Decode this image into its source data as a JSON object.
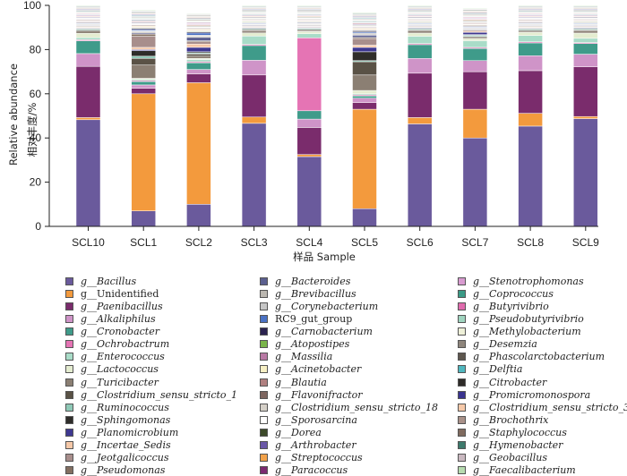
{
  "chart_data": {
    "type": "stacked-bar",
    "ylabel_cn": "相对丰度/%",
    "ylabel_en": "Relative abundance",
    "xlabel": "样品 Sample",
    "ylim": [
      0,
      100
    ],
    "yticks": [
      0,
      20,
      40,
      60,
      80,
      100
    ],
    "categories": [
      "SCL10",
      "SCL1",
      "SCL2",
      "SCL3",
      "SCL4",
      "SCL5",
      "SCL6",
      "SCL7",
      "SCL8",
      "SCL9"
    ],
    "series": [
      {
        "name": "g__Bacillus",
        "italic": true,
        "color": "#6a5a9c",
        "values": [
          50.0,
          7.0,
          10.0,
          49.0,
          33.5,
          8.0,
          48.5,
          40.0,
          47.0,
          51.0
        ]
      },
      {
        "name": "g__Unidentified",
        "italic": false,
        "color": "#f39a3d",
        "values": [
          1.0,
          53.0,
          55.0,
          3.0,
          1.0,
          45.0,
          3.0,
          13.0,
          6.0,
          1.0
        ]
      },
      {
        "name": "g__Paenibacillus",
        "italic": true,
        "color": "#7a2c6c",
        "values": [
          24.0,
          2.5,
          4.0,
          20.0,
          13.0,
          3.0,
          21.0,
          17.0,
          20.0,
          23.5
        ]
      },
      {
        "name": "g__Alkaliphilus",
        "italic": true,
        "color": "#cf94c8",
        "values": [
          6.0,
          1.5,
          2.0,
          7.0,
          4.0,
          2.0,
          7.0,
          5.0,
          7.0,
          6.0
        ]
      },
      {
        "name": "g__Cronobacter",
        "italic": true,
        "color": "#3f9b8a",
        "values": [
          6.0,
          1.5,
          3.0,
          7.0,
          4.0,
          1.0,
          6.5,
          5.5,
          6.0,
          5.0
        ]
      },
      {
        "name": "g__Ochrobactrum",
        "italic": true,
        "color": "#e574b4",
        "values": [
          0.5,
          0.5,
          0.5,
          0.5,
          35.0,
          0.5,
          0.5,
          0.5,
          0.5,
          0.5
        ]
      },
      {
        "name": "g__Enterococcus",
        "italic": true,
        "color": "#a9dcc8",
        "values": [
          1.0,
          0.5,
          1.0,
          4.0,
          2.0,
          0.5,
          3.5,
          3.0,
          3.0,
          2.0
        ]
      },
      {
        "name": "g__Lactococcus",
        "italic": true,
        "color": "#e4ecd0",
        "values": [
          2.0,
          0.5,
          0.5,
          1.5,
          1.0,
          1.5,
          1.5,
          1.0,
          1.5,
          2.5
        ]
      },
      {
        "name": "g__Turicibacter",
        "italic": true,
        "color": "#8b7f73",
        "values": [
          1.0,
          6.0,
          1.0,
          1.0,
          0.5,
          7.0,
          1.0,
          0.5,
          0.5,
          1.0
        ]
      },
      {
        "name": "g__Clostridium_sensu_stricto_1",
        "italic": true,
        "color": "#5a5246",
        "values": [
          0.5,
          3.0,
          1.0,
          0.5,
          0.5,
          6.0,
          0.5,
          0.5,
          0.5,
          0.5
        ]
      },
      {
        "name": "g__Ruminococcus",
        "italic": true,
        "color": "#8fc9b7",
        "values": [
          0.5,
          1.0,
          0.5,
          0.5,
          0.5,
          0.5,
          0.5,
          0.5,
          0.5,
          0.5
        ]
      },
      {
        "name": "g__Sphingomonas",
        "italic": true,
        "color": "#2f2d2a",
        "values": [
          0.3,
          2.5,
          0.5,
          0.3,
          0.3,
          4.0,
          0.3,
          0.3,
          0.3,
          0.3
        ]
      },
      {
        "name": "g__Planomicrobium",
        "italic": true,
        "color": "#3e3891",
        "values": [
          0.3,
          0.5,
          2.0,
          0.3,
          0.3,
          2.0,
          0.3,
          1.0,
          0.3,
          0.3
        ]
      },
      {
        "name": "g__Incertae_Sedis",
        "italic": true,
        "color": "#f5c8a8",
        "values": [
          0.3,
          1.0,
          1.5,
          0.3,
          0.3,
          1.0,
          0.3,
          0.5,
          0.3,
          0.3
        ]
      },
      {
        "name": "g__Jeotgalicoccus",
        "italic": true,
        "color": "#a88e8c",
        "values": [
          0.3,
          5.0,
          1.0,
          0.3,
          0.3,
          3.0,
          0.3,
          0.5,
          0.3,
          0.3
        ]
      },
      {
        "name": "g__Pseudomonas",
        "italic": true,
        "color": "#836f61",
        "values": [
          0.3,
          1.0,
          0.5,
          0.3,
          0.3,
          0.5,
          0.3,
          0.3,
          0.3,
          0.3
        ]
      },
      {
        "name": "g__Bacteroides",
        "italic": true,
        "color": "#5b5f8f",
        "values": [
          0.3,
          0.5,
          1.5,
          0.3,
          0.3,
          1.0,
          0.3,
          0.3,
          0.3,
          0.3
        ]
      },
      {
        "name": "g__Brevibacillus",
        "italic": true,
        "color": "#bcb8b1",
        "values": [
          0.3,
          0.5,
          0.5,
          0.3,
          0.3,
          0.5,
          0.3,
          0.3,
          0.3,
          0.3
        ]
      },
      {
        "name": "g__Corynebacterium",
        "italic": true,
        "color": "#c6c6c6",
        "values": [
          0.3,
          0.5,
          0.5,
          0.3,
          0.3,
          0.5,
          0.3,
          0.3,
          0.3,
          0.3
        ]
      },
      {
        "name": "RC9_gut_group",
        "italic": false,
        "color": "#4a72c4",
        "values": [
          0.3,
          0.5,
          1.0,
          0.3,
          0.3,
          0.5,
          0.3,
          0.3,
          0.3,
          0.3
        ]
      },
      {
        "name": "g__Carnobacterium",
        "italic": true,
        "color": "#2b2250",
        "values": [
          0.3,
          0.5,
          0.5,
          0.3,
          0.3,
          0.5,
          0.3,
          0.3,
          0.3,
          0.3
        ]
      },
      {
        "name": "g__Atopostipes",
        "italic": true,
        "color": "#7ab54a",
        "values": [
          0.3,
          0.3,
          0.3,
          0.3,
          0.3,
          0.3,
          0.3,
          0.3,
          0.3,
          0.3
        ]
      },
      {
        "name": "g__Massilia",
        "italic": true,
        "color": "#b97aa5",
        "values": [
          0.3,
          0.3,
          0.3,
          0.3,
          0.3,
          0.3,
          0.3,
          0.3,
          0.3,
          0.3
        ]
      },
      {
        "name": "g__Acinetobacter",
        "italic": true,
        "color": "#f7f0c4",
        "values": [
          0.3,
          0.5,
          0.5,
          0.3,
          0.3,
          0.5,
          0.3,
          0.3,
          0.3,
          0.3
        ]
      },
      {
        "name": "g__Blautia",
        "italic": true,
        "color": "#b08080",
        "values": [
          0.3,
          0.3,
          0.3,
          0.3,
          0.3,
          0.3,
          0.3,
          0.3,
          0.3,
          0.3
        ]
      },
      {
        "name": "g__Flavonifractor",
        "italic": true,
        "color": "#7e6660",
        "values": [
          0.3,
          0.3,
          0.3,
          0.3,
          0.3,
          0.3,
          0.3,
          0.3,
          0.3,
          0.3
        ]
      },
      {
        "name": "g__Clostridium_sensu_stricto_18",
        "italic": true,
        "color": "#d5d0c8",
        "values": [
          0.3,
          0.3,
          0.3,
          0.3,
          0.3,
          0.3,
          0.3,
          0.3,
          0.3,
          0.3
        ]
      },
      {
        "name": "g__Sporosarcina",
        "italic": true,
        "color": "#ffffff",
        "values": [
          0.3,
          0.3,
          0.3,
          0.3,
          0.3,
          0.3,
          0.3,
          0.3,
          0.3,
          0.3
        ]
      },
      {
        "name": "g__Dorea",
        "italic": true,
        "color": "#3d4a2a",
        "values": [
          0.3,
          0.3,
          0.3,
          0.3,
          0.3,
          0.3,
          0.3,
          0.3,
          0.3,
          0.3
        ]
      },
      {
        "name": "g__Arthrobacter",
        "italic": true,
        "color": "#6b58a8",
        "values": [
          0.3,
          0.3,
          0.3,
          0.3,
          0.3,
          0.3,
          0.3,
          0.3,
          0.3,
          0.3
        ]
      },
      {
        "name": "g__Streptococcus",
        "italic": true,
        "color": "#f2a24b",
        "values": [
          0.3,
          0.3,
          0.3,
          0.3,
          0.3,
          0.3,
          0.3,
          0.3,
          0.3,
          0.3
        ]
      },
      {
        "name": "g__Paracoccus",
        "italic": true,
        "color": "#7b2a70",
        "values": [
          0.3,
          0.3,
          0.3,
          0.3,
          0.3,
          0.3,
          0.3,
          0.3,
          0.3,
          0.3
        ]
      },
      {
        "name": "g__Stenotrophomonas",
        "italic": true,
        "color": "#d89bd0",
        "values": [
          0.3,
          0.3,
          0.3,
          0.3,
          0.3,
          0.3,
          0.3,
          0.3,
          0.3,
          0.3
        ]
      },
      {
        "name": "g__Coprococcus",
        "italic": true,
        "color": "#3a9a86",
        "values": [
          0.3,
          0.3,
          0.3,
          0.3,
          0.3,
          0.3,
          0.3,
          0.3,
          0.3,
          0.3
        ]
      },
      {
        "name": "g__Butyrivibrio",
        "italic": true,
        "color": "#e06cae",
        "values": [
          0.3,
          0.3,
          0.3,
          0.3,
          0.3,
          0.3,
          0.3,
          0.3,
          0.3,
          0.3
        ]
      },
      {
        "name": "g__Pseudobutyrivibrio",
        "italic": true,
        "color": "#9fd4bf",
        "values": [
          0.3,
          0.3,
          0.3,
          0.3,
          0.3,
          0.3,
          0.3,
          0.3,
          0.3,
          0.3
        ]
      },
      {
        "name": "g__Methylobacterium",
        "italic": true,
        "color": "#eef0d8",
        "values": [
          0.3,
          0.3,
          0.3,
          0.3,
          0.3,
          0.3,
          0.3,
          0.3,
          0.3,
          0.3
        ]
      },
      {
        "name": "g__Desemzia",
        "italic": true,
        "color": "#8e857c",
        "values": [
          0.3,
          0.3,
          0.3,
          0.3,
          0.3,
          0.3,
          0.3,
          0.3,
          0.3,
          0.3
        ]
      },
      {
        "name": "g__Phascolarctobacterium",
        "italic": true,
        "color": "#5e574e",
        "values": [
          0.3,
          0.3,
          0.3,
          0.3,
          0.3,
          0.3,
          0.3,
          0.3,
          0.3,
          0.3
        ]
      },
      {
        "name": "g__Delftia",
        "italic": true,
        "color": "#4fb7bf",
        "values": [
          0.3,
          0.3,
          0.3,
          0.3,
          0.3,
          0.3,
          0.3,
          0.3,
          0.3,
          0.3
        ]
      },
      {
        "name": "g__Citrobacter",
        "italic": true,
        "color": "#2e2b28",
        "values": [
          0.3,
          0.3,
          0.3,
          0.3,
          0.3,
          0.3,
          0.3,
          0.3,
          0.3,
          0.3
        ]
      },
      {
        "name": "g__Promicromonospora",
        "italic": true,
        "color": "#3a3490",
        "values": [
          0.3,
          0.3,
          0.3,
          0.3,
          0.3,
          0.3,
          0.3,
          0.3,
          0.3,
          0.3
        ]
      },
      {
        "name": "g__Clostridium_sensu_stricto_3",
        "italic": true,
        "color": "#f6c9a9",
        "values": [
          0.3,
          0.3,
          0.3,
          0.3,
          0.3,
          0.3,
          0.3,
          0.3,
          0.3,
          0.3
        ]
      },
      {
        "name": "g__Brochothrix",
        "italic": true,
        "color": "#a99189",
        "values": [
          0.3,
          0.3,
          0.3,
          0.3,
          0.3,
          0.3,
          0.3,
          0.3,
          0.3,
          0.3
        ]
      },
      {
        "name": "g__Staphylococcus",
        "italic": true,
        "color": "#806b5f",
        "values": [
          0.3,
          0.3,
          0.3,
          0.3,
          0.3,
          0.3,
          0.3,
          0.3,
          0.3,
          0.3
        ]
      },
      {
        "name": "g__Hymenobacter",
        "italic": true,
        "color": "#3d7a6c",
        "values": [
          0.3,
          0.3,
          0.3,
          0.3,
          0.3,
          0.3,
          0.3,
          0.3,
          0.3,
          0.3
        ]
      },
      {
        "name": "g__Geobacillus",
        "italic": true,
        "color": "#c9b8c0",
        "values": [
          0.3,
          0.3,
          0.3,
          0.3,
          0.3,
          0.3,
          0.3,
          0.3,
          0.3,
          0.3
        ]
      },
      {
        "name": "g__Faecalibacterium",
        "italic": true,
        "color": "#b7dcb0",
        "values": [
          0.3,
          0.3,
          0.3,
          0.3,
          0.3,
          0.3,
          0.3,
          0.3,
          0.3,
          0.3
        ]
      }
    ]
  }
}
